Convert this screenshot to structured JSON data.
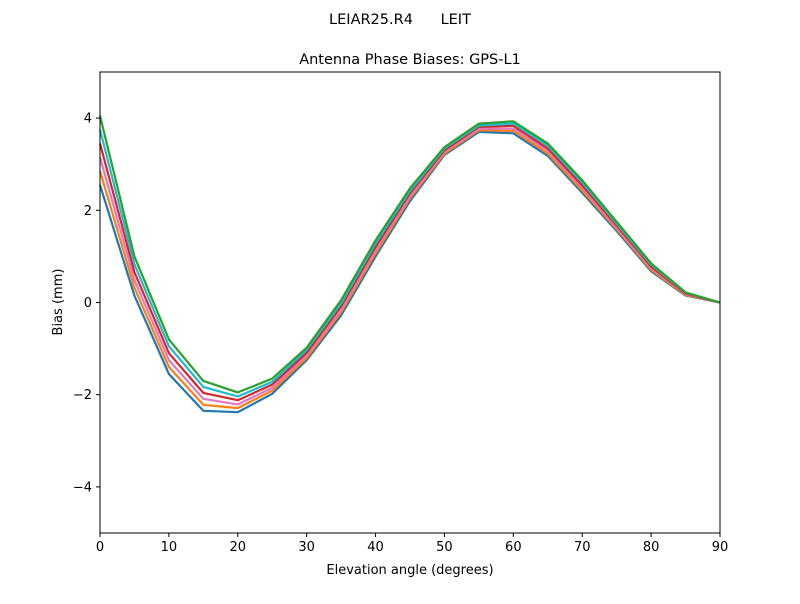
{
  "chart_data": {
    "type": "line",
    "suptitle": "LEIAR25.R4      LEIT",
    "title": "Antenna Phase Biases: GPS-L1",
    "xlabel": "Elevation angle (degrees)",
    "ylabel": "Bias (mm)",
    "xlim": [
      0,
      90
    ],
    "ylim": [
      -5,
      5
    ],
    "xticks": [
      0,
      10,
      20,
      30,
      40,
      50,
      60,
      70,
      80,
      90
    ],
    "yticks": [
      -4,
      -2,
      0,
      2,
      4
    ],
    "ytick_labels": [
      "−4",
      "−2",
      "0",
      "2",
      "4"
    ],
    "grid": false,
    "x": [
      0,
      5,
      10,
      15,
      20,
      25,
      30,
      35,
      40,
      45,
      50,
      55,
      60,
      65,
      70,
      75,
      80,
      85,
      90
    ],
    "series": [
      {
        "color": "#1f77b4",
        "values": [
          2.55,
          0.15,
          -1.55,
          -2.35,
          -2.38,
          -1.98,
          -1.25,
          -0.28,
          1.0,
          2.2,
          3.2,
          3.7,
          3.67,
          3.18,
          2.38,
          1.55,
          0.68,
          0.15,
          0
        ]
      },
      {
        "color": "#ff7f0e",
        "values": [
          2.85,
          0.32,
          -1.4,
          -2.22,
          -2.29,
          -1.91,
          -1.2,
          -0.21,
          1.07,
          2.26,
          3.23,
          3.74,
          3.72,
          3.23,
          2.43,
          1.59,
          0.71,
          0.16,
          0
        ]
      },
      {
        "color": "#e377c2",
        "values": [
          3.15,
          0.49,
          -1.25,
          -2.09,
          -2.21,
          -1.85,
          -1.14,
          -0.15,
          1.14,
          2.31,
          3.27,
          3.77,
          3.77,
          3.29,
          2.49,
          1.63,
          0.75,
          0.18,
          0
        ]
      },
      {
        "color": "#d62728",
        "values": [
          3.45,
          0.66,
          -1.1,
          -1.96,
          -2.12,
          -1.78,
          -1.09,
          -0.08,
          1.21,
          2.37,
          3.3,
          3.81,
          3.83,
          3.34,
          2.54,
          1.67,
          0.78,
          0.19,
          0
        ]
      },
      {
        "color": "#17becf",
        "values": [
          3.75,
          0.83,
          -0.95,
          -1.83,
          -2.04,
          -1.72,
          -1.03,
          -0.02,
          1.28,
          2.42,
          3.34,
          3.84,
          3.88,
          3.4,
          2.6,
          1.71,
          0.82,
          0.21,
          0
        ]
      },
      {
        "color": "#2ca02c",
        "values": [
          4.05,
          1.0,
          -0.8,
          -1.7,
          -1.95,
          -1.65,
          -0.98,
          0.05,
          1.35,
          2.48,
          3.37,
          3.88,
          3.93,
          3.45,
          2.65,
          1.75,
          0.85,
          0.22,
          0
        ]
      }
    ]
  }
}
